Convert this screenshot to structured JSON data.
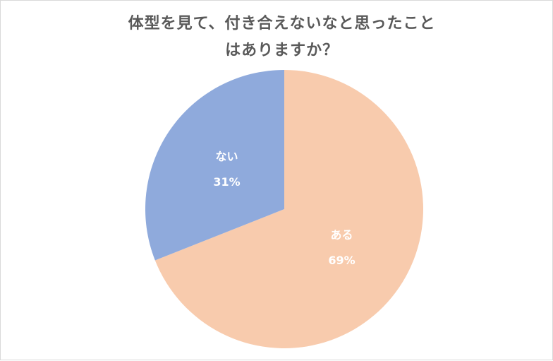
{
  "chart_data": {
    "type": "pie",
    "title": "体型を見て、付き合えないなと思ったことはありますか？",
    "categories": [
      "ある",
      "ない"
    ],
    "values": [
      69,
      31
    ],
    "value_labels": [
      "69%",
      "31%"
    ],
    "colors": [
      "#f8cbad",
      "#8faadc"
    ]
  }
}
